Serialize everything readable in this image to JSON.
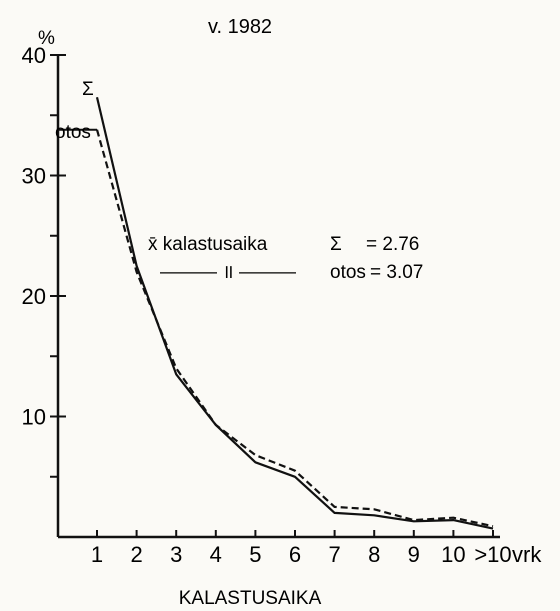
{
  "chart_data": {
    "type": "line",
    "title": "v. 1982",
    "xlabel": "KALASTUSAIKA",
    "x_unit": "vrk",
    "y_unit": "%",
    "ylim": [
      0,
      40
    ],
    "grid": false,
    "categories": [
      "1",
      "2",
      "3",
      "4",
      "5",
      "6",
      "7",
      "8",
      "9",
      "10",
      ">10"
    ],
    "y_ticks": [
      "10",
      "20",
      "30",
      "40"
    ],
    "series": [
      {
        "name": "Σ",
        "style": "solid",
        "values": [
          36.5,
          22.5,
          13.5,
          9.3,
          6.2,
          5.0,
          2.0,
          1.8,
          1.3,
          1.4,
          0.7
        ]
      },
      {
        "name": "otos",
        "style": "dashed",
        "values": [
          33.8,
          22.0,
          14.0,
          9.3,
          6.8,
          5.5,
          2.5,
          2.3,
          1.4,
          1.6,
          0.9
        ]
      }
    ],
    "legend": {
      "header": "x̄ kalastusaika",
      "ditto": "——— ॥ ———",
      "entries": [
        {
          "label": "Σ",
          "value": "= 2.76"
        },
        {
          "label": "otos",
          "value": "= 3.07"
        }
      ]
    },
    "colors": {
      "ink": "#111111",
      "paper": "#fbfaf6"
    }
  }
}
